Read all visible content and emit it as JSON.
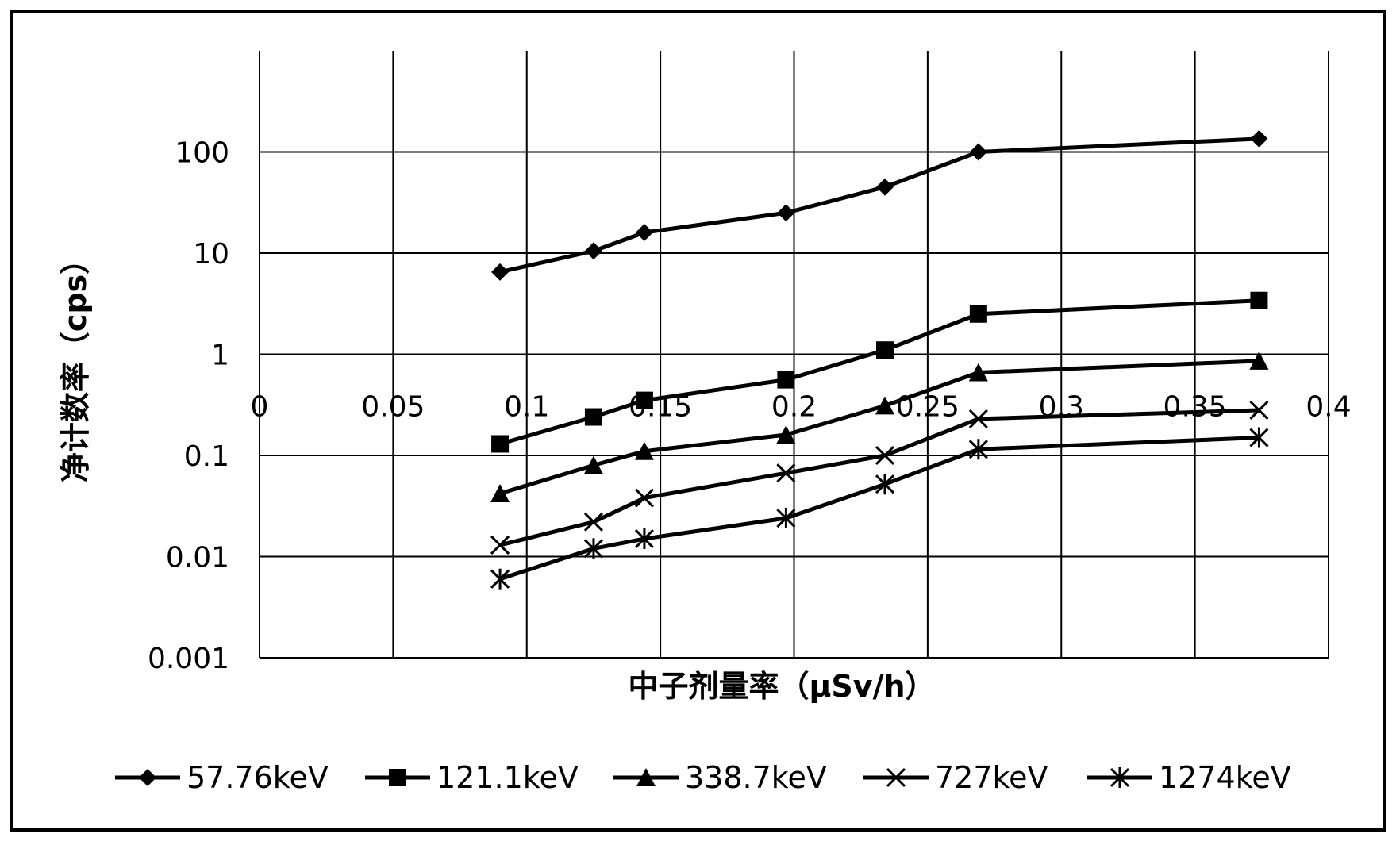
{
  "chart_data": {
    "type": "line",
    "xlabel": "中子剂量率（μSv/h）",
    "ylabel": "净计数率（cps）",
    "y_scale": "log",
    "xlim": [
      0,
      0.4
    ],
    "ylim": [
      0.001,
      1000
    ],
    "x_ticks": [
      "0",
      "0.05",
      "0.1",
      "0.15",
      "0.2",
      "0.25",
      "0.3",
      "0.35",
      "0.4"
    ],
    "y_ticks": [
      "0.001",
      "0.01",
      "0.1",
      "1",
      "10",
      "100"
    ],
    "grid": true,
    "legend_position": "bottom",
    "x": [
      0.09,
      0.125,
      0.144,
      0.197,
      0.234,
      0.269,
      0.374
    ],
    "series": [
      {
        "name": "57.76keV",
        "marker": "diamond",
        "values": [
          6.5,
          10.5,
          16,
          25,
          45,
          100,
          135
        ]
      },
      {
        "name": "121.1keV",
        "marker": "square",
        "values": [
          0.13,
          0.24,
          0.35,
          0.56,
          1.1,
          2.5,
          3.4
        ]
      },
      {
        "name": "338.7keV",
        "marker": "triangle",
        "values": [
          0.042,
          0.08,
          0.11,
          0.16,
          0.31,
          0.66,
          0.86
        ]
      },
      {
        "name": "727keV",
        "marker": "x",
        "values": [
          0.013,
          0.022,
          0.038,
          0.067,
          0.1,
          0.23,
          0.28
        ]
      },
      {
        "name": "1274keV",
        "marker": "asterisk",
        "values": [
          0.006,
          0.012,
          0.015,
          0.024,
          0.052,
          0.115,
          0.15
        ]
      }
    ]
  }
}
